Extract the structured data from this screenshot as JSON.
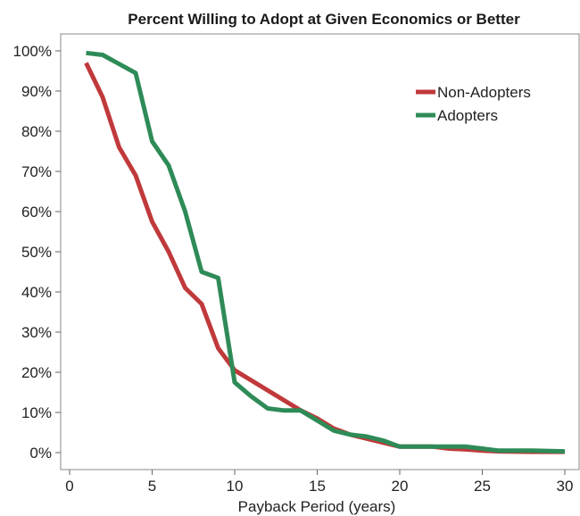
{
  "chart_data": {
    "type": "line",
    "title": "Percent Willing to Adopt at Given Economics or Better",
    "xlabel": "Payback Period (years)",
    "ylabel": "",
    "xlim": [
      0,
      30
    ],
    "ylim": [
      0,
      100
    ],
    "x_ticks": [
      0,
      5,
      10,
      15,
      20,
      25,
      30
    ],
    "y_ticks": [
      0,
      10,
      20,
      30,
      40,
      50,
      60,
      70,
      80,
      90,
      100
    ],
    "y_tick_suffix": "%",
    "grid": false,
    "legend_position": "top-right",
    "series": [
      {
        "name": "Non-Adopters",
        "color": "#c0393b",
        "points": [
          [
            1,
            97
          ],
          [
            2,
            88.5
          ],
          [
            3,
            76
          ],
          [
            4,
            69
          ],
          [
            5,
            57.5
          ],
          [
            6,
            50
          ],
          [
            7,
            41
          ],
          [
            8,
            37
          ],
          [
            9,
            26
          ],
          [
            10,
            20.5
          ],
          [
            11,
            18
          ],
          [
            12,
            15.5
          ],
          [
            13,
            13
          ],
          [
            14,
            10.5
          ],
          [
            15,
            8.5
          ],
          [
            16,
            6
          ],
          [
            17,
            4.5
          ],
          [
            18,
            3.5
          ],
          [
            19,
            2.5
          ],
          [
            20,
            1.5
          ],
          [
            22,
            1.5
          ],
          [
            23,
            1
          ],
          [
            24,
            0.8
          ],
          [
            25,
            0.5
          ],
          [
            26,
            0.3
          ],
          [
            28,
            0.2
          ],
          [
            30,
            0.2
          ]
        ]
      },
      {
        "name": "Adopters",
        "color": "#2e8b57",
        "points": [
          [
            1,
            99.5
          ],
          [
            2,
            99
          ],
          [
            4,
            94.5
          ],
          [
            5,
            77.5
          ],
          [
            6,
            71.5
          ],
          [
            7,
            60
          ],
          [
            8,
            45
          ],
          [
            9,
            43.5
          ],
          [
            10,
            17.5
          ],
          [
            11,
            14
          ],
          [
            12,
            11
          ],
          [
            13,
            10.5
          ],
          [
            14,
            10.5
          ],
          [
            15,
            8
          ],
          [
            16,
            5.5
          ],
          [
            17,
            4.5
          ],
          [
            18,
            4
          ],
          [
            19,
            3
          ],
          [
            20,
            1.5
          ],
          [
            22,
            1.5
          ],
          [
            24,
            1.5
          ],
          [
            25,
            1
          ],
          [
            26,
            0.5
          ],
          [
            28,
            0.5
          ],
          [
            30,
            0.3
          ]
        ]
      }
    ]
  }
}
